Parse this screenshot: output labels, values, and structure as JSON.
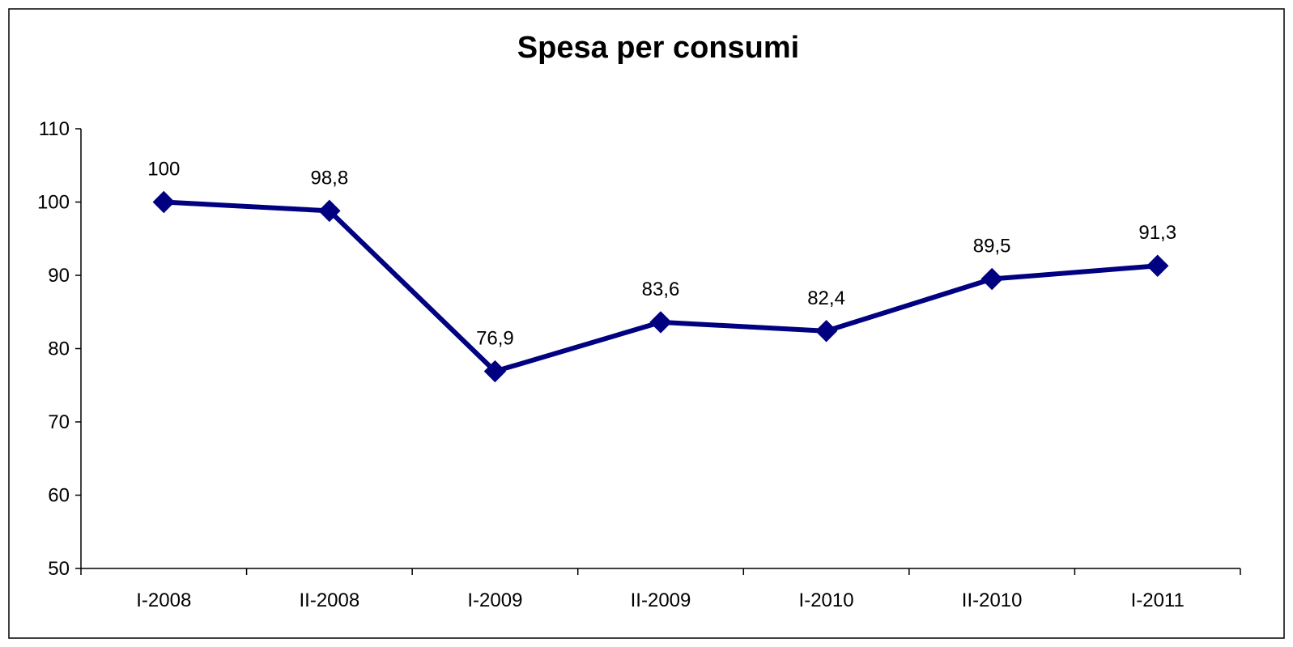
{
  "chart_data": {
    "type": "line",
    "title": "Spesa per consumi",
    "xlabel": "",
    "ylabel": "",
    "categories": [
      "I-2008",
      "II-2008",
      "I-2009",
      "II-2009",
      "I-2010",
      "II-2010",
      "I-2011"
    ],
    "series": [
      {
        "values": [
          100,
          98.8,
          76.9,
          83.6,
          82.4,
          89.5,
          91.3
        ],
        "labels": [
          "100",
          "98,8",
          "76,9",
          "83,6",
          "82,4",
          "89,5",
          "91,3"
        ],
        "color": "#000080",
        "marker": "diamond"
      }
    ],
    "ylim": [
      50,
      110
    ],
    "yticks": [
      50,
      60,
      70,
      80,
      90,
      100,
      110
    ],
    "grid": false,
    "legend": "none"
  }
}
